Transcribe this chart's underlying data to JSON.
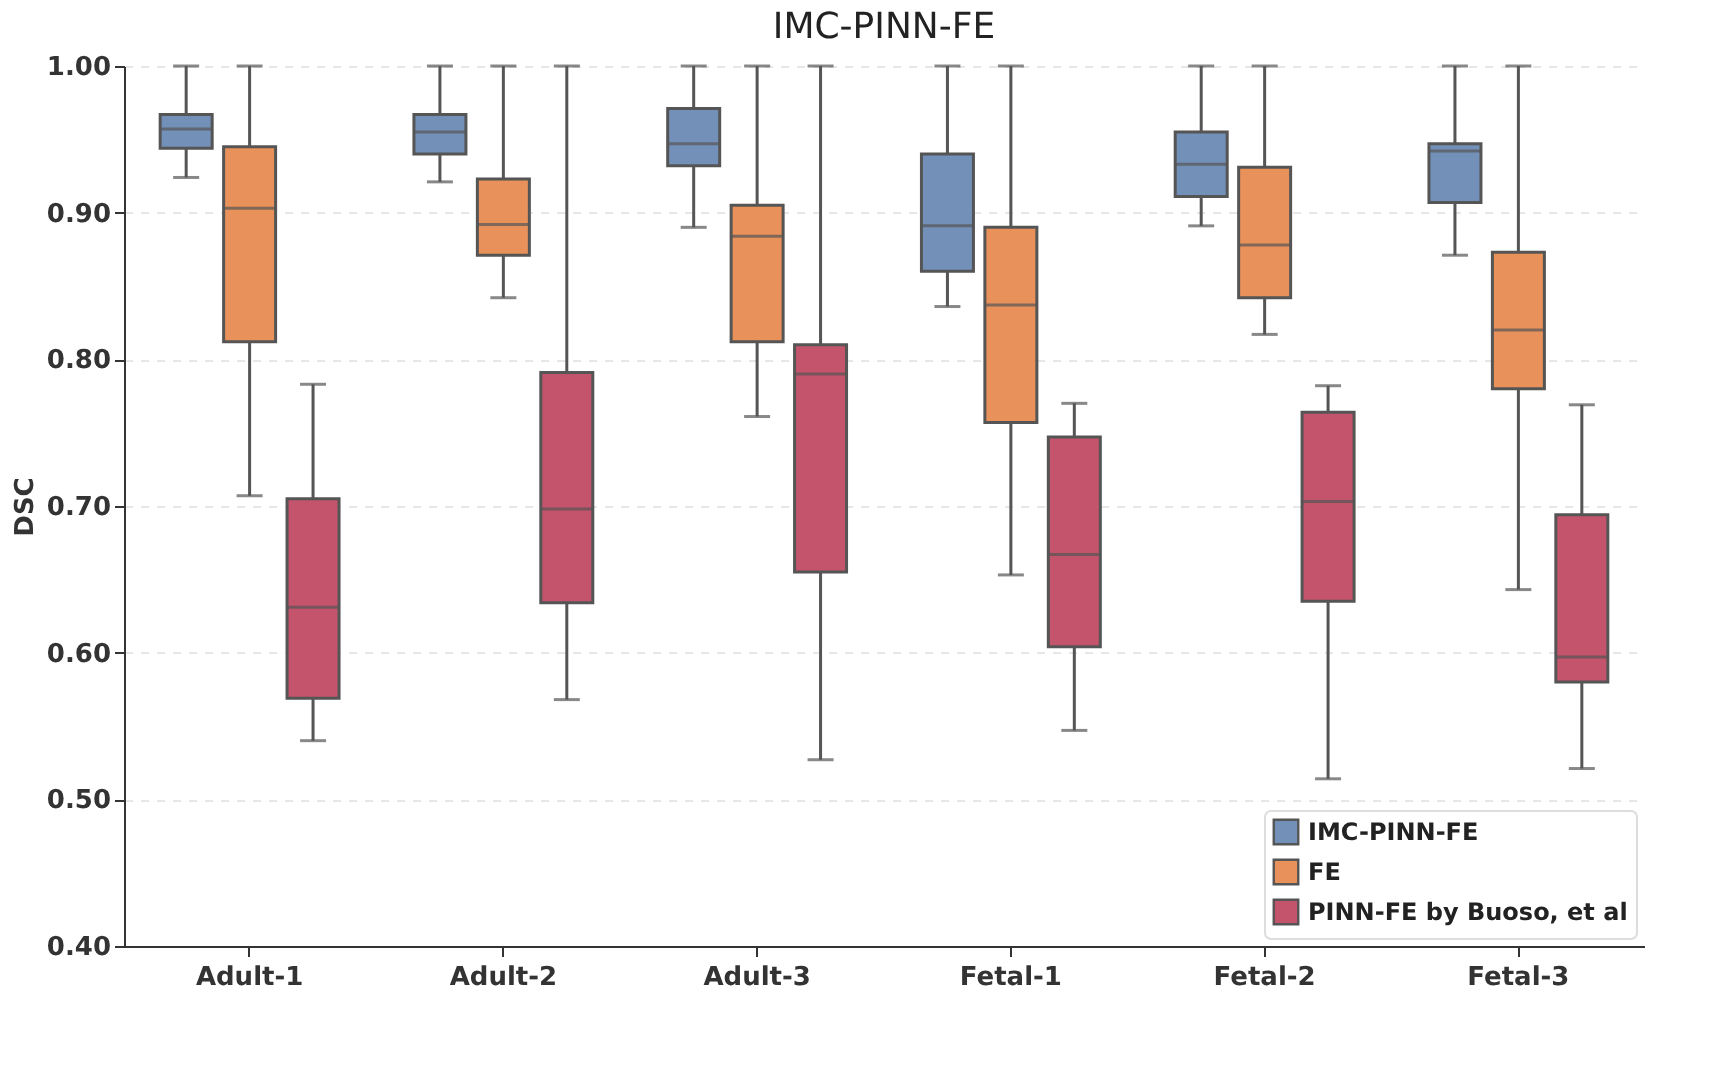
{
  "chart_data": {
    "type": "box",
    "title": "IMC-PINN-FE",
    "ylabel": "DSC",
    "categories": [
      "Adult-1",
      "Adult-2",
      "Adult-3",
      "Fetal-1",
      "Fetal-2",
      "Fetal-3"
    ],
    "series": [
      {
        "name": "IMC-PINN-FE",
        "color": "#7390b8",
        "boxes": [
          {
            "low": 0.924,
            "q1": 0.944,
            "median": 0.957,
            "q3": 0.967,
            "high": 1.0
          },
          {
            "low": 0.921,
            "q1": 0.94,
            "median": 0.955,
            "q3": 0.967,
            "high": 1.0
          },
          {
            "low": 0.89,
            "q1": 0.932,
            "median": 0.947,
            "q3": 0.971,
            "high": 1.0
          },
          {
            "low": 0.836,
            "q1": 0.86,
            "median": 0.891,
            "q3": 0.94,
            "high": 1.0
          },
          {
            "low": 0.891,
            "q1": 0.911,
            "median": 0.933,
            "q3": 0.955,
            "high": 1.0
          },
          {
            "low": 0.871,
            "q1": 0.907,
            "median": 0.942,
            "q3": 0.947,
            "high": 1.0
          }
        ]
      },
      {
        "name": "FE",
        "color": "#e8915a",
        "boxes": [
          {
            "low": 0.707,
            "q1": 0.812,
            "median": 0.903,
            "q3": 0.945,
            "high": 1.0
          },
          {
            "low": 0.842,
            "q1": 0.871,
            "median": 0.892,
            "q3": 0.923,
            "high": 1.0
          },
          {
            "low": 0.761,
            "q1": 0.812,
            "median": 0.884,
            "q3": 0.905,
            "high": 1.0
          },
          {
            "low": 0.653,
            "q1": 0.757,
            "median": 0.837,
            "q3": 0.89,
            "high": 1.0
          },
          {
            "low": 0.817,
            "q1": 0.842,
            "median": 0.878,
            "q3": 0.931,
            "high": 1.0
          },
          {
            "low": 0.643,
            "q1": 0.78,
            "median": 0.82,
            "q3": 0.873,
            "high": 1.0
          }
        ]
      },
      {
        "name": "PINN-FE by Buoso, et al",
        "color": "#c4536c",
        "boxes": [
          {
            "low": 0.54,
            "q1": 0.569,
            "median": 0.631,
            "q3": 0.705,
            "high": 0.783
          },
          {
            "low": 0.568,
            "q1": 0.634,
            "median": 0.698,
            "q3": 0.791,
            "high": 1.0
          },
          {
            "low": 0.527,
            "q1": 0.655,
            "median": 0.79,
            "q3": 0.81,
            "high": 1.0
          },
          {
            "low": 0.547,
            "q1": 0.604,
            "median": 0.667,
            "q3": 0.747,
            "high": 0.77
          },
          {
            "low": 0.514,
            "q1": 0.635,
            "median": 0.703,
            "q3": 0.764,
            "high": 0.782
          },
          {
            "low": 0.521,
            "q1": 0.58,
            "median": 0.597,
            "q3": 0.694,
            "high": 0.769
          }
        ]
      }
    ],
    "ylim": [
      0.4,
      1.0
    ],
    "yticks": [
      {
        "value": 0.4,
        "label": "0.40"
      },
      {
        "value": 0.5,
        "label": "0.50"
      },
      {
        "value": 0.6,
        "label": "0.60"
      },
      {
        "value": 0.7,
        "label": "0.70"
      },
      {
        "value": 0.8,
        "label": "0.80"
      },
      {
        "value": 0.9,
        "label": "0.90"
      },
      {
        "value": 1.0,
        "label": "1.00"
      }
    ],
    "grid": "y",
    "legend": "bottom right"
  }
}
